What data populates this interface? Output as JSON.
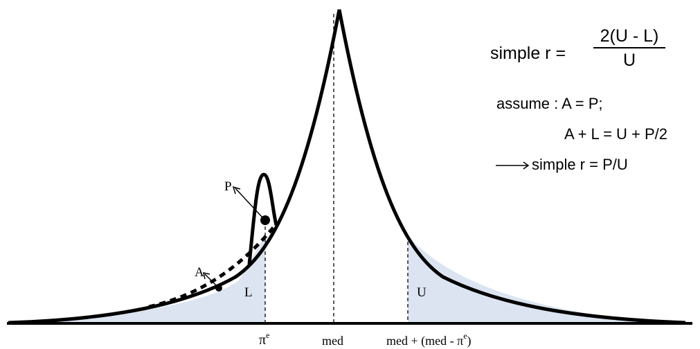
{
  "labels": {
    "point_p": "P",
    "point_a": "A",
    "area_l": "L",
    "area_u": "U",
    "pi": "π",
    "pi_sup": "e",
    "med": "med",
    "mirror_pre": "med + (med - π",
    "mirror_sup": "e",
    "mirror_post": ")"
  },
  "formulas": {
    "simple_r_lhs": "simple r =",
    "simple_r_num": "2(U - L)",
    "simple_r_den": "U",
    "assume_line1": "assume : A = P;",
    "assume_line2": "A + L = U + P/2",
    "conclusion": "simple r = P/U"
  },
  "colors": {
    "shade": "#dbe4f0",
    "curve": "#000000"
  }
}
